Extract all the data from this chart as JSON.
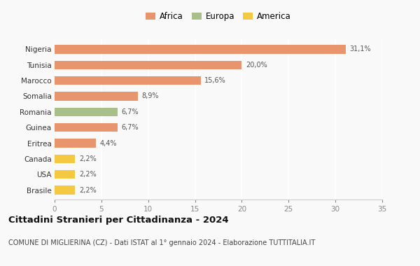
{
  "categories": [
    "Brasile",
    "USA",
    "Canada",
    "Eritrea",
    "Guinea",
    "Romania",
    "Somalia",
    "Marocco",
    "Tunisia",
    "Nigeria"
  ],
  "values": [
    2.2,
    2.2,
    2.2,
    4.4,
    6.7,
    6.7,
    8.9,
    15.6,
    20.0,
    31.1
  ],
  "labels": [
    "2,2%",
    "2,2%",
    "2,2%",
    "4,4%",
    "6,7%",
    "6,7%",
    "8,9%",
    "15,6%",
    "20,0%",
    "31,1%"
  ],
  "colors": [
    "#f5c842",
    "#f5c842",
    "#f5c842",
    "#e8956d",
    "#e8956d",
    "#a8bf8a",
    "#e8956d",
    "#e8956d",
    "#e8956d",
    "#e8956d"
  ],
  "legend": [
    {
      "label": "Africa",
      "color": "#e8956d"
    },
    {
      "label": "Europa",
      "color": "#a8bf8a"
    },
    {
      "label": "America",
      "color": "#f5c842"
    }
  ],
  "xlim": [
    0,
    35
  ],
  "xticks": [
    0,
    5,
    10,
    15,
    20,
    25,
    30,
    35
  ],
  "title": "Cittadini Stranieri per Cittadinanza - 2024",
  "subtitle": "COMUNE DI MIGLIERINA (CZ) - Dati ISTAT al 1° gennaio 2024 - Elaborazione TUTTITALIA.IT",
  "bg_color": "#f9f9f9",
  "bar_height": 0.55,
  "label_fontsize": 7,
  "title_fontsize": 9.5,
  "subtitle_fontsize": 7,
  "ytick_fontsize": 7.5,
  "xtick_fontsize": 7.5
}
